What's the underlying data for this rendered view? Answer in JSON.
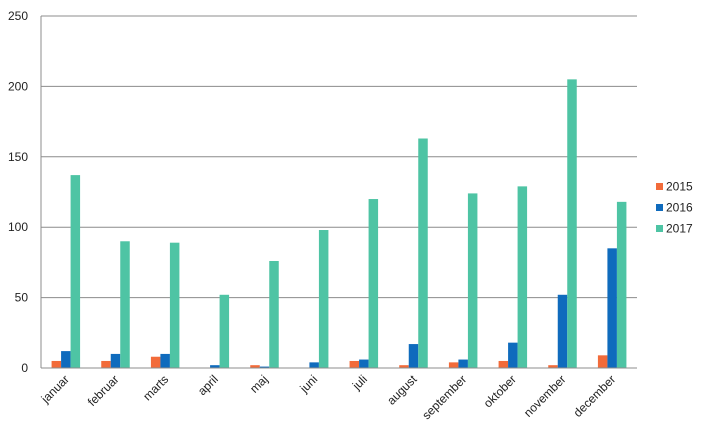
{
  "chart_data": {
    "type": "bar",
    "categories": [
      "januar",
      "februar",
      "marts",
      "april",
      "maj",
      "juni",
      "juli",
      "august",
      "september",
      "oktober",
      "november",
      "december"
    ],
    "series": [
      {
        "name": "2015",
        "color": "#f26b3a",
        "values": [
          5,
          5,
          8,
          0,
          2,
          0,
          5,
          2,
          4,
          5,
          2,
          9
        ]
      },
      {
        "name": "2016",
        "color": "#0f6bbd",
        "values": [
          12,
          10,
          10,
          2,
          1,
          4,
          6,
          17,
          6,
          18,
          52,
          85
        ]
      },
      {
        "name": "2017",
        "color": "#4ec4a4",
        "values": [
          137,
          90,
          89,
          52,
          76,
          98,
          120,
          163,
          124,
          129,
          205,
          118
        ]
      }
    ],
    "ylim": [
      0,
      250
    ],
    "yticks": [
      0,
      50,
      100,
      150,
      200,
      250
    ],
    "grid": true,
    "legend": "right",
    "title": "",
    "xlabel": "",
    "ylabel": ""
  }
}
